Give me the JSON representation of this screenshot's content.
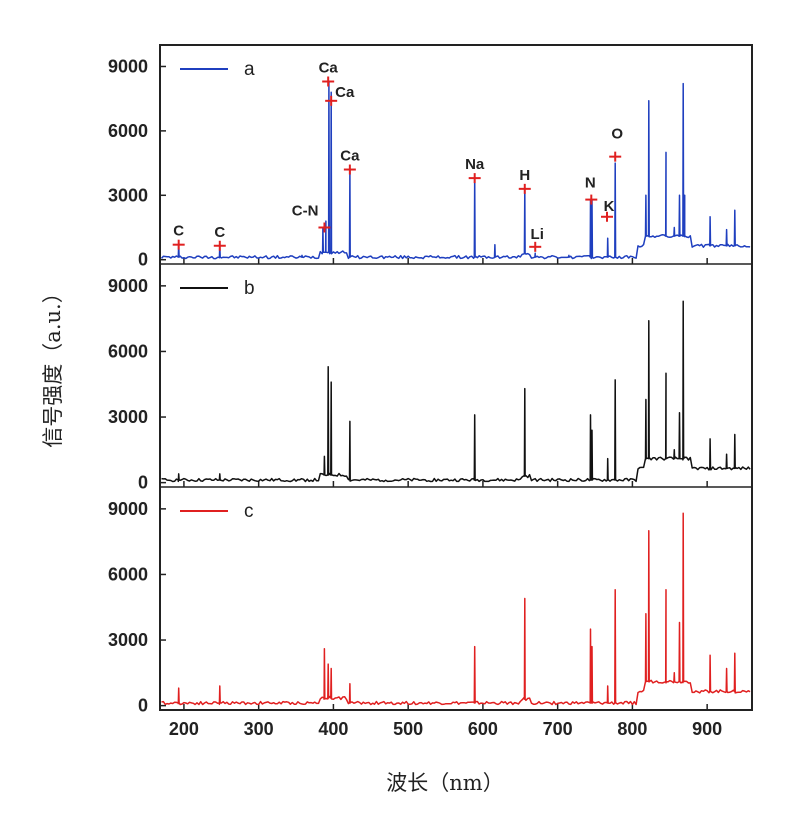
{
  "chart_data": {
    "type": "line",
    "xlabel": "波长（nm）",
    "ylabel": "信号强度（a.u.）",
    "xlim": [
      168,
      960
    ],
    "ylim": [
      -200,
      10000
    ],
    "x_ticks": [
      200,
      300,
      400,
      500,
      600,
      700,
      800,
      900
    ],
    "y_ticks": [
      0,
      3000,
      6000,
      9000
    ],
    "legend_position": "top-left",
    "panels": [
      {
        "legend": "a",
        "color": "#1f3fbf",
        "peaks": [
          [
            193,
            700
          ],
          [
            248,
            650
          ],
          [
            358,
            200
          ],
          [
            386,
            1500
          ],
          [
            390,
            1800
          ],
          [
            394,
            8300
          ],
          [
            397,
            7800
          ],
          [
            422,
            4200
          ],
          [
            589,
            3800
          ],
          [
            616,
            700
          ],
          [
            656,
            3300
          ],
          [
            670,
            300
          ],
          [
            715,
            200
          ],
          [
            744,
            2800
          ],
          [
            746,
            2800
          ],
          [
            767,
            1000
          ],
          [
            777,
            4500
          ],
          [
            818,
            3000
          ],
          [
            822,
            7400
          ],
          [
            845,
            5000
          ],
          [
            856,
            1500
          ],
          [
            863,
            3000
          ],
          [
            868,
            8200
          ],
          [
            870,
            3000
          ],
          [
            904,
            2000
          ],
          [
            926,
            1400
          ],
          [
            937,
            2300
          ]
        ],
        "annotations": [
          {
            "text": "C",
            "x": 193,
            "y": 700
          },
          {
            "text": "C",
            "x": 248,
            "y": 650
          },
          {
            "text": "C-N",
            "x": 388,
            "y": 1500
          },
          {
            "text": "Ca",
            "x": 393,
            "y": 8300
          },
          {
            "text": "Ca",
            "x": 397,
            "y": 7400
          },
          {
            "text": "Ca",
            "x": 422,
            "y": 4200
          },
          {
            "text": "Na",
            "x": 589,
            "y": 3800
          },
          {
            "text": "H",
            "x": 656,
            "y": 3300
          },
          {
            "text": "Li",
            "x": 670,
            "y": 600
          },
          {
            "text": "N",
            "x": 745,
            "y": 2800
          },
          {
            "text": "K",
            "x": 766,
            "y": 2000
          },
          {
            "text": "O",
            "x": 777,
            "y": 4800
          }
        ]
      },
      {
        "legend": "b",
        "color": "#111111",
        "peaks": [
          [
            193,
            400
          ],
          [
            248,
            400
          ],
          [
            388,
            1200
          ],
          [
            393,
            5300
          ],
          [
            397,
            4600
          ],
          [
            422,
            2800
          ],
          [
            589,
            3100
          ],
          [
            656,
            4300
          ],
          [
            744,
            3100
          ],
          [
            746,
            2400
          ],
          [
            767,
            1100
          ],
          [
            777,
            4700
          ],
          [
            818,
            3800
          ],
          [
            822,
            7400
          ],
          [
            845,
            5000
          ],
          [
            856,
            1500
          ],
          [
            863,
            3200
          ],
          [
            868,
            8300
          ],
          [
            904,
            2000
          ],
          [
            926,
            1300
          ],
          [
            937,
            2200
          ]
        ]
      },
      {
        "legend": "c",
        "color": "#e02020",
        "peaks": [
          [
            193,
            800
          ],
          [
            248,
            900
          ],
          [
            388,
            2600
          ],
          [
            393,
            1900
          ],
          [
            397,
            1700
          ],
          [
            422,
            1000
          ],
          [
            589,
            2700
          ],
          [
            656,
            4900
          ],
          [
            744,
            3500
          ],
          [
            746,
            2700
          ],
          [
            767,
            900
          ],
          [
            777,
            5300
          ],
          [
            818,
            4200
          ],
          [
            822,
            8000
          ],
          [
            845,
            5300
          ],
          [
            856,
            1500
          ],
          [
            863,
            3800
          ],
          [
            868,
            8800
          ],
          [
            904,
            2300
          ],
          [
            926,
            1700
          ],
          [
            937,
            2400
          ]
        ]
      }
    ]
  }
}
